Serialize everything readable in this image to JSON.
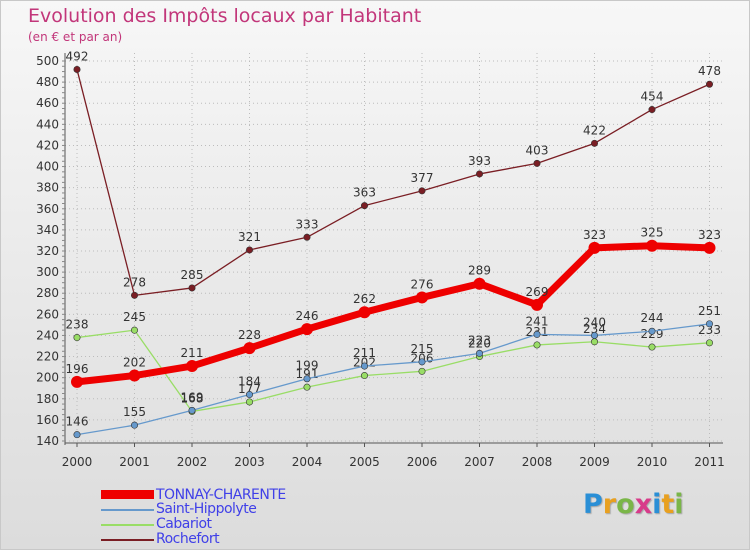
{
  "chart_data": {
    "type": "line",
    "title": "Evolution des Impôts locaux par Habitant",
    "subtitle": "(en € et par an)",
    "x": [
      "2000",
      "2001",
      "2002",
      "2003",
      "2004",
      "2005",
      "2006",
      "2007",
      "2008",
      "2009",
      "2010",
      "2011"
    ],
    "ylim": [
      140,
      500
    ],
    "yticks": [
      140,
      160,
      180,
      200,
      220,
      240,
      260,
      280,
      300,
      320,
      340,
      360,
      380,
      400,
      420,
      440,
      460,
      480,
      500
    ],
    "series": [
      {
        "name": "Rochefort",
        "color": "#7a1e24",
        "values": [
          492,
          278,
          285,
          321,
          333,
          363,
          377,
          393,
          403,
          422,
          454,
          478
        ]
      },
      {
        "name": "Cabariot",
        "color": "#99dd66",
        "values": [
          238,
          245,
          168,
          177,
          191,
          202,
          206,
          220,
          231,
          234,
          229,
          233
        ]
      },
      {
        "name": "Saint-Hippolyte",
        "color": "#6699cc",
        "values": [
          146,
          155,
          169,
          184,
          199,
          211,
          215,
          223,
          241,
          240,
          244,
          251
        ]
      },
      {
        "name": "TONNAY-CHARENTE",
        "color": "#ee0000",
        "values": [
          196,
          202,
          211,
          228,
          246,
          262,
          276,
          289,
          269,
          323,
          325,
          323
        ]
      }
    ]
  },
  "legend": [
    {
      "name": "TONNAY-CHARENTE",
      "color": "#ee0000"
    },
    {
      "name": "Saint-Hippolyte",
      "color": "#6699cc"
    },
    {
      "name": "Cabariot",
      "color": "#99dd66"
    },
    {
      "name": "Rochefort",
      "color": "#7a1e24"
    }
  ],
  "logo": {
    "text": "Proxiti",
    "colors": [
      "#2a8fd6",
      "#e8a020",
      "#7ab648",
      "#d83b8a",
      "#2a8fd6",
      "#e8a020",
      "#7ab648"
    ]
  }
}
